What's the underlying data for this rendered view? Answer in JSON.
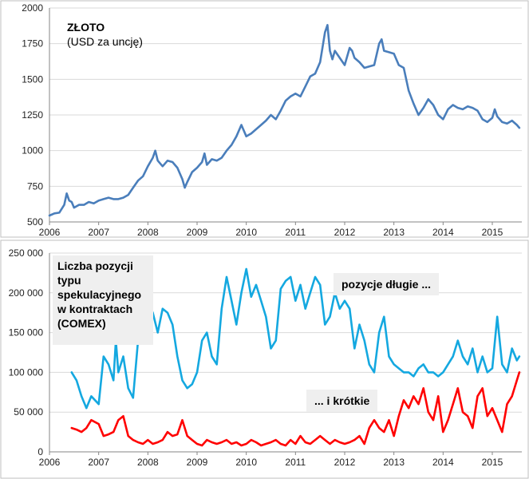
{
  "chart_data": [
    {
      "type": "line",
      "title": "ZŁOTO",
      "subtitle": "(USD za uncję)",
      "xlim": [
        2006,
        2015.6
      ],
      "ylim": [
        500,
        2000
      ],
      "x_ticks": [
        "2006",
        "2007",
        "2008",
        "2009",
        "2010",
        "2011",
        "2012",
        "2013",
        "2014",
        "2015"
      ],
      "y_ticks": [
        "500",
        "750",
        "1000",
        "1250",
        "1500",
        "1750",
        "2000"
      ],
      "grid": true,
      "series": [
        {
          "color": "#4a7ebb",
          "x": [
            2006.0,
            2006.1,
            2006.2,
            2006.3,
            2006.35,
            2006.4,
            2006.45,
            2006.5,
            2006.6,
            2006.7,
            2006.8,
            2006.9,
            2007.0,
            2007.1,
            2007.2,
            2007.3,
            2007.4,
            2007.5,
            2007.6,
            2007.7,
            2007.8,
            2007.9,
            2008.0,
            2008.1,
            2008.15,
            2008.2,
            2008.3,
            2008.4,
            2008.5,
            2008.6,
            2008.7,
            2008.75,
            2008.8,
            2008.9,
            2009.0,
            2009.1,
            2009.15,
            2009.2,
            2009.3,
            2009.4,
            2009.5,
            2009.6,
            2009.7,
            2009.8,
            2009.9,
            2010.0,
            2010.1,
            2010.2,
            2010.3,
            2010.4,
            2010.5,
            2010.6,
            2010.7,
            2010.8,
            2010.9,
            2011.0,
            2011.1,
            2011.2,
            2011.3,
            2011.4,
            2011.5,
            2011.6,
            2011.65,
            2011.7,
            2011.75,
            2011.8,
            2011.9,
            2012.0,
            2012.1,
            2012.15,
            2012.2,
            2012.3,
            2012.4,
            2012.5,
            2012.6,
            2012.7,
            2012.75,
            2012.8,
            2012.9,
            2013.0,
            2013.1,
            2013.2,
            2013.3,
            2013.4,
            2013.5,
            2013.6,
            2013.7,
            2013.8,
            2013.9,
            2014.0,
            2014.1,
            2014.2,
            2014.3,
            2014.4,
            2014.5,
            2014.6,
            2014.7,
            2014.8,
            2014.9,
            2015.0,
            2015.05,
            2015.1,
            2015.2,
            2015.3,
            2015.4,
            2015.5,
            2015.55
          ],
          "y": [
            545,
            560,
            565,
            620,
            700,
            650,
            640,
            600,
            620,
            620,
            640,
            630,
            650,
            660,
            670,
            660,
            660,
            670,
            690,
            740,
            790,
            820,
            890,
            950,
            1000,
            930,
            890,
            930,
            920,
            880,
            800,
            740,
            780,
            850,
            880,
            920,
            980,
            900,
            940,
            930,
            950,
            1000,
            1040,
            1100,
            1180,
            1100,
            1120,
            1150,
            1180,
            1210,
            1250,
            1220,
            1280,
            1350,
            1380,
            1400,
            1380,
            1450,
            1520,
            1540,
            1620,
            1830,
            1880,
            1700,
            1640,
            1700,
            1650,
            1600,
            1720,
            1700,
            1650,
            1620,
            1580,
            1590,
            1600,
            1750,
            1780,
            1700,
            1690,
            1680,
            1600,
            1580,
            1420,
            1330,
            1250,
            1300,
            1360,
            1320,
            1250,
            1220,
            1290,
            1320,
            1300,
            1290,
            1310,
            1300,
            1280,
            1220,
            1200,
            1230,
            1290,
            1240,
            1200,
            1190,
            1210,
            1180,
            1160
          ]
        }
      ]
    },
    {
      "type": "line",
      "title": "",
      "xlim": [
        2006,
        2015.6
      ],
      "ylim": [
        0,
        250000
      ],
      "x_ticks": [
        "2006",
        "2007",
        "2008",
        "2009",
        "2010",
        "2011",
        "2012",
        "2013",
        "2014",
        "2015"
      ],
      "y_ticks": [
        "0",
        "50 000",
        "100 000",
        "150 000",
        "200 000",
        "250 000"
      ],
      "grid": true,
      "series": [
        {
          "name": "pozycje długie ...",
          "color": "#14a8e0",
          "x": [
            2006.45,
            2006.55,
            2006.65,
            2006.75,
            2006.85,
            2007.0,
            2007.1,
            2007.2,
            2007.3,
            2007.35,
            2007.4,
            2007.5,
            2007.6,
            2007.7,
            2007.8,
            2007.9,
            2008.0,
            2008.1,
            2008.2,
            2008.3,
            2008.4,
            2008.5,
            2008.6,
            2008.7,
            2008.8,
            2008.9,
            2009.0,
            2009.1,
            2009.2,
            2009.3,
            2009.4,
            2009.5,
            2009.6,
            2009.7,
            2009.8,
            2009.9,
            2010.0,
            2010.1,
            2010.2,
            2010.3,
            2010.4,
            2010.5,
            2010.6,
            2010.7,
            2010.8,
            2010.9,
            2011.0,
            2011.1,
            2011.2,
            2011.3,
            2011.4,
            2011.5,
            2011.6,
            2011.7,
            2011.8,
            2011.9,
            2012.0,
            2012.1,
            2012.2,
            2012.3,
            2012.4,
            2012.5,
            2012.6,
            2012.7,
            2012.8,
            2012.9,
            2013.0,
            2013.1,
            2013.2,
            2013.3,
            2013.4,
            2013.5,
            2013.6,
            2013.7,
            2013.8,
            2013.9,
            2014.0,
            2014.1,
            2014.2,
            2014.3,
            2014.4,
            2014.5,
            2014.6,
            2014.7,
            2014.8,
            2014.9,
            2015.0,
            2015.1,
            2015.2,
            2015.3,
            2015.4,
            2015.5,
            2015.55
          ],
          "y": [
            100000,
            90000,
            70000,
            55000,
            70000,
            60000,
            120000,
            110000,
            90000,
            140000,
            100000,
            120000,
            80000,
            68000,
            140000,
            175000,
            190000,
            175000,
            150000,
            180000,
            175000,
            160000,
            120000,
            90000,
            80000,
            85000,
            100000,
            140000,
            150000,
            120000,
            110000,
            180000,
            220000,
            190000,
            160000,
            200000,
            230000,
            195000,
            210000,
            190000,
            170000,
            130000,
            140000,
            205000,
            215000,
            220000,
            190000,
            210000,
            180000,
            200000,
            220000,
            210000,
            160000,
            170000,
            200000,
            180000,
            190000,
            180000,
            130000,
            160000,
            140000,
            110000,
            100000,
            150000,
            170000,
            120000,
            110000,
            105000,
            100000,
            100000,
            95000,
            105000,
            110000,
            100000,
            100000,
            95000,
            100000,
            110000,
            120000,
            140000,
            120000,
            110000,
            130000,
            100000,
            120000,
            100000,
            105000,
            170000,
            110000,
            100000,
            130000,
            115000,
            120000
          ]
        },
        {
          "name": "... i krótkie",
          "color": "#ff0000",
          "x": [
            2006.45,
            2006.55,
            2006.65,
            2006.75,
            2006.85,
            2007.0,
            2007.1,
            2007.2,
            2007.3,
            2007.4,
            2007.5,
            2007.6,
            2007.7,
            2007.8,
            2007.9,
            2008.0,
            2008.1,
            2008.2,
            2008.3,
            2008.4,
            2008.5,
            2008.6,
            2008.7,
            2008.8,
            2008.9,
            2009.0,
            2009.1,
            2009.2,
            2009.3,
            2009.4,
            2009.5,
            2009.6,
            2009.7,
            2009.8,
            2009.9,
            2010.0,
            2010.1,
            2010.2,
            2010.3,
            2010.4,
            2010.5,
            2010.6,
            2010.7,
            2010.8,
            2010.9,
            2011.0,
            2011.1,
            2011.2,
            2011.3,
            2011.4,
            2011.5,
            2011.6,
            2011.7,
            2011.8,
            2011.9,
            2012.0,
            2012.1,
            2012.2,
            2012.3,
            2012.4,
            2012.5,
            2012.6,
            2012.7,
            2012.8,
            2012.9,
            2013.0,
            2013.1,
            2013.2,
            2013.3,
            2013.4,
            2013.5,
            2013.6,
            2013.7,
            2013.8,
            2013.9,
            2014.0,
            2014.1,
            2014.2,
            2014.3,
            2014.4,
            2014.5,
            2014.6,
            2014.7,
            2014.8,
            2014.9,
            2015.0,
            2015.1,
            2015.2,
            2015.3,
            2015.4,
            2015.5,
            2015.55
          ],
          "y": [
            30000,
            28000,
            25000,
            30000,
            40000,
            35000,
            20000,
            22000,
            25000,
            40000,
            45000,
            20000,
            15000,
            12000,
            10000,
            15000,
            10000,
            12000,
            15000,
            25000,
            20000,
            22000,
            40000,
            20000,
            15000,
            10000,
            8000,
            15000,
            12000,
            10000,
            12000,
            15000,
            10000,
            12000,
            8000,
            10000,
            15000,
            12000,
            8000,
            10000,
            12000,
            15000,
            10000,
            8000,
            15000,
            10000,
            20000,
            12000,
            10000,
            15000,
            20000,
            15000,
            10000,
            15000,
            12000,
            10000,
            12000,
            15000,
            20000,
            10000,
            30000,
            40000,
            30000,
            25000,
            40000,
            20000,
            45000,
            65000,
            55000,
            70000,
            60000,
            80000,
            50000,
            40000,
            70000,
            25000,
            40000,
            60000,
            80000,
            50000,
            45000,
            30000,
            70000,
            80000,
            45000,
            55000,
            40000,
            25000,
            60000,
            70000,
            90000,
            100000
          ]
        }
      ]
    }
  ],
  "annotations": {
    "top_title": "ZŁOTO",
    "top_subtitle": "(USD za uncję)",
    "bottom_note": [
      "Liczba pozycji",
      "typu",
      "spekulacyjnego",
      "w kontraktach",
      "(COMEX)"
    ],
    "long_label": "pozycje długie ...",
    "short_label": "... i krótkie"
  }
}
